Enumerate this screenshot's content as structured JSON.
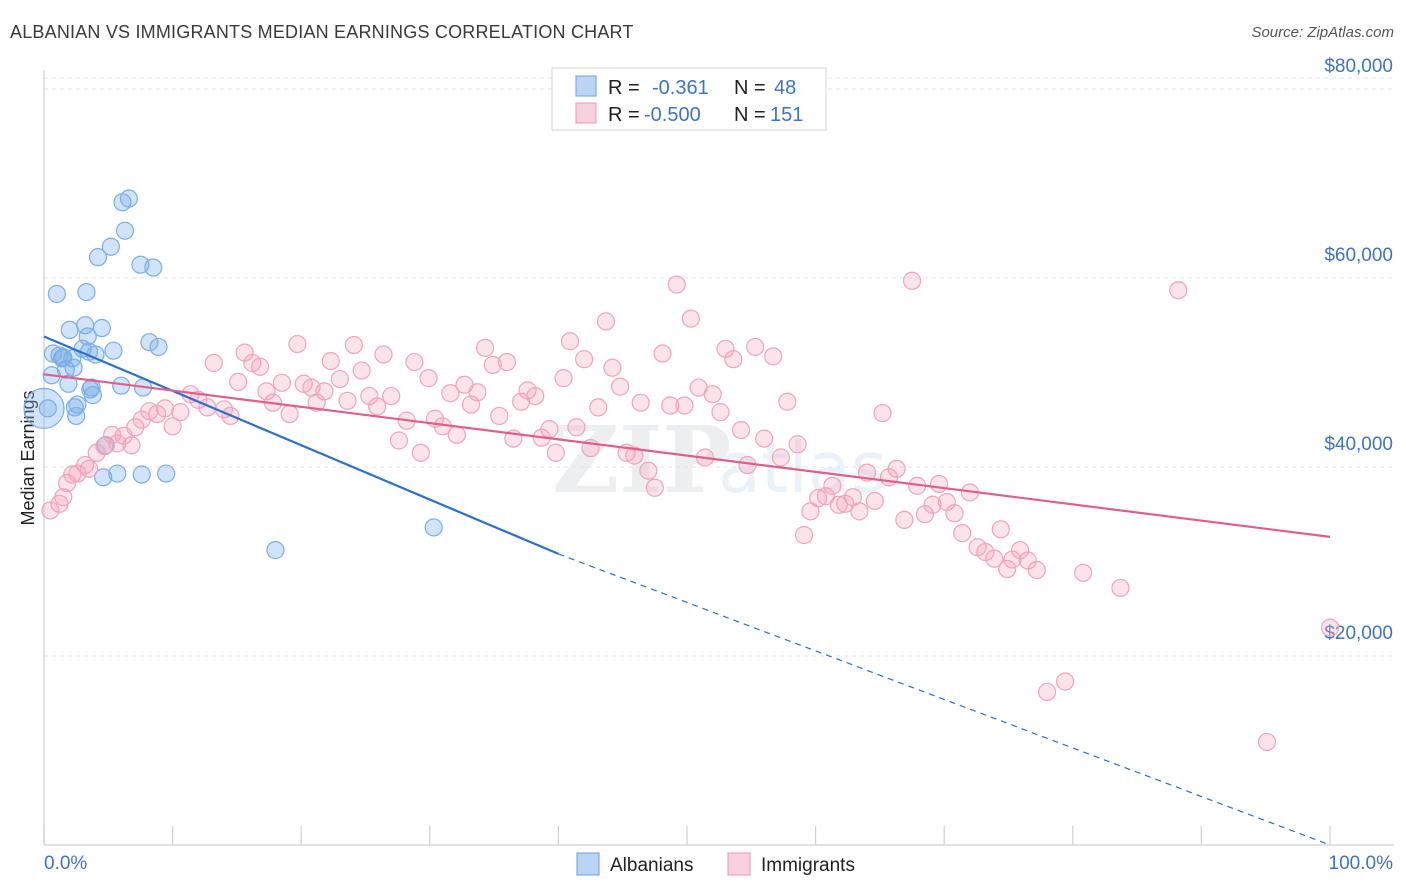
{
  "title": "ALBANIAN VS IMMIGRANTS MEDIAN EARNINGS CORRELATION CHART",
  "source": "Source: ZipAtlas.com",
  "colors": {
    "albanians": "#7aaee8",
    "immigrants": "#f2a3bb",
    "albanians_line": "#2b6fce",
    "immigrants_line": "#e05f8a",
    "tick": "#3d74c4"
  },
  "chart_data": {
    "type": "scatter",
    "title": "ALBANIAN VS IMMIGRANTS MEDIAN EARNINGS CORRELATION CHART",
    "xlabel": "",
    "ylabel": "Median Earnings",
    "xlim": [
      0,
      100
    ],
    "ylim": [
      0,
      82000
    ],
    "x_tick_labels": [
      "0.0%",
      "100.0%"
    ],
    "y_ticks": [
      20000,
      40000,
      60000,
      80000
    ],
    "y_tick_labels": [
      "$20,000",
      "$40,000",
      "$60,000",
      "$80,000"
    ],
    "grid": true,
    "legend_position": "top-center",
    "stats": [
      {
        "name": "Albanians",
        "r_label": "R =",
        "r": "-0.361",
        "n_label": "N =",
        "n": "48"
      },
      {
        "name": "Immigrants",
        "r_label": "R =",
        "r": "-0.500",
        "n_label": "N =",
        "n": "151"
      }
    ],
    "series": [
      {
        "name": "Albanians",
        "trend": {
          "x": [
            0,
            40
          ],
          "y": [
            53800,
            30800
          ],
          "dashed_to": [
            100,
            -3200
          ]
        },
        "points": [
          [
            0.3,
            46200
          ],
          [
            0.6,
            49700
          ],
          [
            0.7,
            52000
          ],
          [
            1.0,
            58300
          ],
          [
            1.2,
            51800
          ],
          [
            1.4,
            51500
          ],
          [
            1.5,
            51600
          ],
          [
            1.7,
            50300
          ],
          [
            1.9,
            48800
          ],
          [
            2.0,
            54500
          ],
          [
            2.2,
            51500
          ],
          [
            2.3,
            50500
          ],
          [
            2.4,
            46300
          ],
          [
            2.5,
            45400
          ],
          [
            2.6,
            46600
          ],
          [
            3.0,
            52500
          ],
          [
            3.2,
            55000
          ],
          [
            3.3,
            58500
          ],
          [
            3.4,
            53800
          ],
          [
            3.5,
            52200
          ],
          [
            3.6,
            48200
          ],
          [
            3.7,
            48400
          ],
          [
            3.8,
            47600
          ],
          [
            4.0,
            51900
          ],
          [
            4.2,
            62200
          ],
          [
            4.5,
            54700
          ],
          [
            4.6,
            38900
          ],
          [
            4.8,
            42300
          ],
          [
            5.2,
            63300
          ],
          [
            5.4,
            52300
          ],
          [
            5.7,
            39300
          ],
          [
            6.0,
            48600
          ],
          [
            6.1,
            68000
          ],
          [
            6.3,
            65000
          ],
          [
            6.6,
            68400
          ],
          [
            7.5,
            61400
          ],
          [
            7.6,
            39200
          ],
          [
            7.7,
            48400
          ],
          [
            8.2,
            53200
          ],
          [
            8.5,
            61100
          ],
          [
            8.9,
            52700
          ],
          [
            9.5,
            39300
          ],
          [
            18.0,
            31200
          ],
          [
            30.3,
            33600
          ]
        ]
      },
      {
        "name": "Immigrants",
        "trend": {
          "x": [
            0,
            100
          ],
          "y": [
            49800,
            32600
          ]
        },
        "points": [
          [
            0.5,
            35400
          ],
          [
            1.2,
            36100
          ],
          [
            1.5,
            36800
          ],
          [
            1.8,
            38300
          ],
          [
            2.2,
            39200
          ],
          [
            2.6,
            39300
          ],
          [
            3.2,
            40200
          ],
          [
            3.5,
            39800
          ],
          [
            4.1,
            41500
          ],
          [
            4.7,
            42200
          ],
          [
            5.3,
            43400
          ],
          [
            5.7,
            42500
          ],
          [
            6.2,
            43300
          ],
          [
            6.8,
            42300
          ],
          [
            7.1,
            44200
          ],
          [
            7.6,
            45000
          ],
          [
            8.2,
            45900
          ],
          [
            8.8,
            45600
          ],
          [
            9.4,
            46200
          ],
          [
            10.0,
            44300
          ],
          [
            10.6,
            45800
          ],
          [
            11.4,
            47700
          ],
          [
            12.0,
            47100
          ],
          [
            12.7,
            46300
          ],
          [
            13.2,
            51000
          ],
          [
            14.0,
            46100
          ],
          [
            14.5,
            45400
          ],
          [
            15.1,
            49000
          ],
          [
            15.6,
            52100
          ],
          [
            16.2,
            51000
          ],
          [
            16.8,
            50600
          ],
          [
            17.3,
            48000
          ],
          [
            17.8,
            46800
          ],
          [
            18.5,
            48900
          ],
          [
            19.1,
            45600
          ],
          [
            19.7,
            53000
          ],
          [
            20.2,
            48800
          ],
          [
            20.8,
            48400
          ],
          [
            21.2,
            46800
          ],
          [
            21.8,
            48000
          ],
          [
            22.3,
            51200
          ],
          [
            23.0,
            49300
          ],
          [
            23.6,
            47000
          ],
          [
            24.1,
            52900
          ],
          [
            24.7,
            50200
          ],
          [
            25.3,
            47500
          ],
          [
            25.9,
            46400
          ],
          [
            26.4,
            51900
          ],
          [
            27.0,
            47500
          ],
          [
            27.6,
            42800
          ],
          [
            28.2,
            44900
          ],
          [
            28.8,
            51100
          ],
          [
            29.3,
            41500
          ],
          [
            29.9,
            49400
          ],
          [
            30.4,
            45100
          ],
          [
            31.0,
            44300
          ],
          [
            31.6,
            47800
          ],
          [
            32.1,
            43400
          ],
          [
            32.7,
            48700
          ],
          [
            33.2,
            46600
          ],
          [
            33.7,
            47900
          ],
          [
            34.3,
            52600
          ],
          [
            34.9,
            50800
          ],
          [
            35.4,
            45400
          ],
          [
            36.0,
            51100
          ],
          [
            36.5,
            43000
          ],
          [
            37.1,
            46900
          ],
          [
            37.6,
            48100
          ],
          [
            38.2,
            47500
          ],
          [
            38.7,
            43100
          ],
          [
            39.3,
            44000
          ],
          [
            39.8,
            41500
          ],
          [
            40.4,
            49400
          ],
          [
            40.9,
            53300
          ],
          [
            41.4,
            44200
          ],
          [
            42.0,
            51400
          ],
          [
            42.5,
            42000
          ],
          [
            43.1,
            46300
          ],
          [
            43.7,
            55400
          ],
          [
            44.2,
            50500
          ],
          [
            44.8,
            48500
          ],
          [
            45.3,
            41500
          ],
          [
            45.9,
            41200
          ],
          [
            46.4,
            46800
          ],
          [
            47.0,
            39600
          ],
          [
            47.5,
            37800
          ],
          [
            48.1,
            52000
          ],
          [
            48.7,
            46500
          ],
          [
            49.2,
            59300
          ],
          [
            49.8,
            46500
          ],
          [
            50.3,
            55700
          ],
          [
            50.9,
            48400
          ],
          [
            51.4,
            41000
          ],
          [
            52.0,
            47700
          ],
          [
            52.6,
            45800
          ],
          [
            53.0,
            52500
          ],
          [
            53.6,
            51400
          ],
          [
            54.2,
            43900
          ],
          [
            54.7,
            40200
          ],
          [
            55.3,
            52700
          ],
          [
            56.0,
            43000
          ],
          [
            56.7,
            51700
          ],
          [
            57.3,
            41000
          ],
          [
            57.8,
            46900
          ],
          [
            58.6,
            42400
          ],
          [
            59.1,
            32800
          ],
          [
            59.6,
            35300
          ],
          [
            60.2,
            36700
          ],
          [
            60.8,
            36900
          ],
          [
            61.3,
            38000
          ],
          [
            61.8,
            36000
          ],
          [
            62.3,
            36100
          ],
          [
            62.9,
            36800
          ],
          [
            63.4,
            35300
          ],
          [
            64.0,
            39400
          ],
          [
            64.6,
            36400
          ],
          [
            65.2,
            45700
          ],
          [
            65.7,
            38900
          ],
          [
            66.3,
            39800
          ],
          [
            66.9,
            34400
          ],
          [
            67.5,
            59700
          ],
          [
            67.9,
            38000
          ],
          [
            68.5,
            35000
          ],
          [
            69.1,
            36000
          ],
          [
            69.6,
            38200
          ],
          [
            70.2,
            36300
          ],
          [
            70.8,
            35100
          ],
          [
            71.4,
            33000
          ],
          [
            72.0,
            37300
          ],
          [
            72.6,
            31500
          ],
          [
            73.2,
            31000
          ],
          [
            73.9,
            30300
          ],
          [
            74.4,
            33400
          ],
          [
            74.9,
            29200
          ],
          [
            75.3,
            30200
          ],
          [
            75.9,
            31200
          ],
          [
            76.5,
            30100
          ],
          [
            77.2,
            29100
          ],
          [
            78.0,
            16200
          ],
          [
            79.4,
            17300
          ],
          [
            80.8,
            28800
          ],
          [
            83.7,
            27200
          ],
          [
            88.2,
            58700
          ],
          [
            95.1,
            10900
          ],
          [
            100.0,
            23000
          ]
        ]
      }
    ]
  }
}
